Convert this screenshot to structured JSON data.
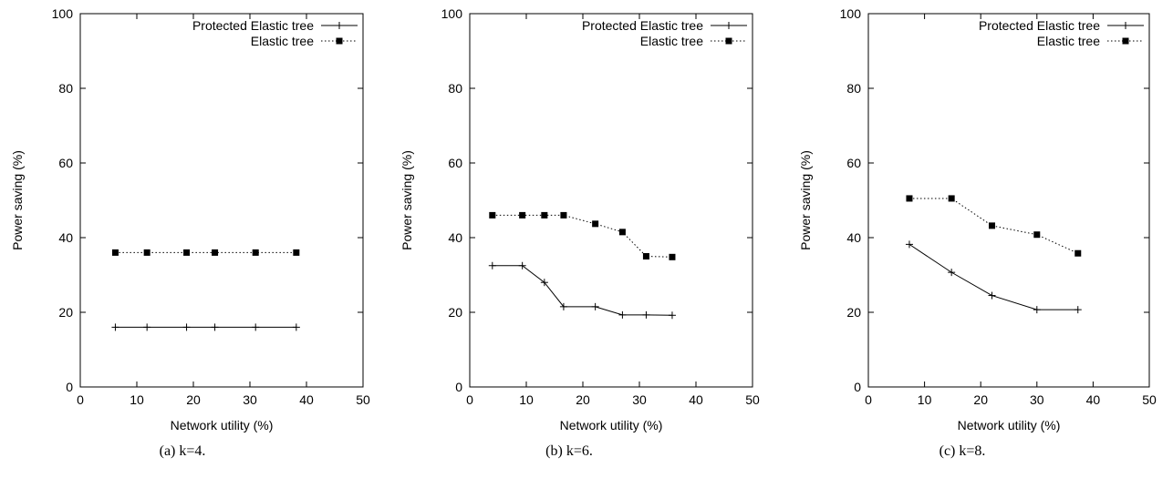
{
  "chart_data": [
    {
      "type": "line",
      "caption": "(a) k=4.",
      "xlabel": "Network utility (%)",
      "ylabel": "Power saving (%)",
      "xlim": [
        0,
        50
      ],
      "ylim": [
        0,
        100
      ],
      "xticks": [
        "0",
        "10",
        "20",
        "30",
        "40",
        "50"
      ],
      "yticks": [
        "0",
        "20",
        "40",
        "60",
        "80",
        "100"
      ],
      "grid": false,
      "legend_position": "top-right",
      "series": [
        {
          "name": "Protected Elastic tree",
          "style": "solid",
          "marker": "plus",
          "x": [
            6.2,
            11.8,
            18.8,
            23.8,
            31.0,
            38.2
          ],
          "y": [
            16,
            16,
            16,
            16,
            16,
            16
          ]
        },
        {
          "name": "Elastic tree",
          "style": "dotted",
          "marker": "square",
          "x": [
            6.2,
            11.8,
            18.8,
            23.8,
            31.0,
            38.2
          ],
          "y": [
            36,
            36,
            36,
            36,
            36,
            36
          ]
        }
      ]
    },
    {
      "type": "line",
      "caption": "(b) k=6.",
      "xlabel": "Network utility (%)",
      "ylabel": "Power saving (%)",
      "xlim": [
        0,
        50
      ],
      "ylim": [
        0,
        100
      ],
      "xticks": [
        "0",
        "10",
        "20",
        "30",
        "40",
        "50"
      ],
      "yticks": [
        "0",
        "20",
        "40",
        "60",
        "80",
        "100"
      ],
      "grid": false,
      "legend_position": "top-right",
      "series": [
        {
          "name": "Protected Elastic tree",
          "style": "solid",
          "marker": "plus",
          "x": [
            4.0,
            9.3,
            13.2,
            16.6,
            22.2,
            27.0,
            31.2,
            35.8
          ],
          "y": [
            32.5,
            32.5,
            28,
            21.5,
            21.5,
            19.3,
            19.3,
            19.2
          ]
        },
        {
          "name": "Elastic tree",
          "style": "dotted",
          "marker": "square",
          "x": [
            4.0,
            9.3,
            13.2,
            16.6,
            22.2,
            27.0,
            31.2,
            35.8
          ],
          "y": [
            46,
            46,
            46,
            46,
            43.7,
            41.5,
            35,
            34.8
          ]
        }
      ]
    },
    {
      "type": "line",
      "caption": "(c) k=8.",
      "xlabel": "Network utility (%)",
      "ylabel": "Power saving (%)",
      "xlim": [
        0,
        50
      ],
      "ylim": [
        0,
        100
      ],
      "xticks": [
        "0",
        "10",
        "20",
        "30",
        "40",
        "50"
      ],
      "yticks": [
        "0",
        "20",
        "40",
        "60",
        "80",
        "100"
      ],
      "grid": false,
      "legend_position": "top-right",
      "series": [
        {
          "name": "Protected Elastic tree",
          "style": "solid",
          "marker": "plus",
          "x": [
            7.3,
            14.8,
            22.0,
            30.0,
            37.3
          ],
          "y": [
            38.2,
            30.7,
            24.5,
            20.7,
            20.7
          ]
        },
        {
          "name": "Elastic tree",
          "style": "dotted",
          "marker": "square",
          "x": [
            7.3,
            14.8,
            22.0,
            30.0,
            37.3
          ],
          "y": [
            50.5,
            50.5,
            43.2,
            40.8,
            35.8
          ]
        }
      ]
    }
  ]
}
